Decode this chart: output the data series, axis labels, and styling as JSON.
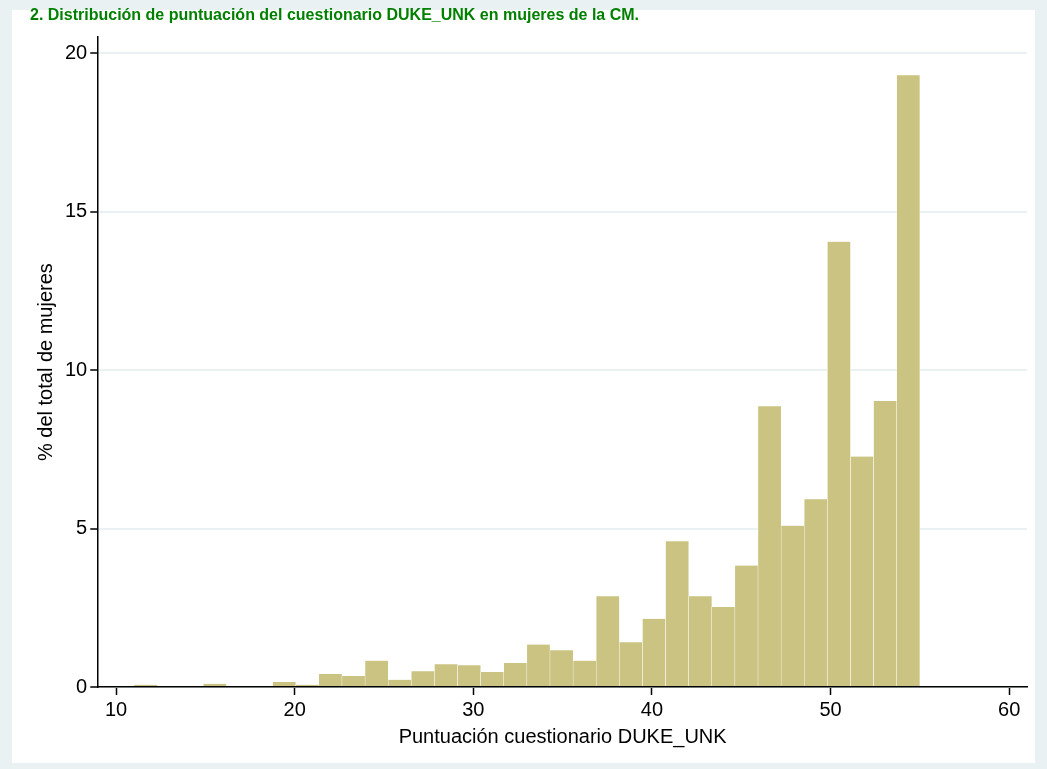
{
  "chart_data": {
    "type": "histogram",
    "title": "2. Distribución de puntuación del cuestionario DUKE_UNK en mujeres de la CM.",
    "xlabel": "Puntuación cuestionario DUKE_UNK",
    "ylabel": "% del total de mujeres",
    "bins": [
      11,
      12.294,
      13.588,
      14.882,
      16.176,
      17.471,
      18.765,
      20.059,
      21.353,
      22.647,
      23.941,
      25.235,
      26.529,
      27.824,
      29.118,
      30.412,
      31.706,
      33,
      34.294,
      35.588,
      36.882,
      38.176,
      39.471,
      40.765,
      42.059,
      43.353,
      44.647,
      45.941,
      47.235,
      48.529,
      49.824,
      51.118,
      52.412,
      53.706,
      55
    ],
    "values": [
      0.07,
      null,
      0,
      0.1,
      null,
      0.03,
      0.16,
      0.07,
      0.41,
      0.35,
      0.83,
      0.23,
      0.5,
      0.72,
      0.69,
      0.47,
      0.76,
      1.34,
      1.16,
      0.83,
      2.86,
      1.41,
      2.15,
      4.6,
      2.86,
      2.52,
      3.83,
      8.86,
      5.09,
      5.92,
      14.05,
      7.27,
      9.02,
      19.3
    ],
    "color": "#cbc382",
    "xlim": [
      9,
      61
    ],
    "xticks": [
      10,
      20,
      30,
      40,
      50,
      60
    ],
    "ylim": [
      0,
      20.5
    ],
    "yticks": [
      0,
      5,
      10,
      15,
      20
    ],
    "grid": "y",
    "legend": false
  }
}
